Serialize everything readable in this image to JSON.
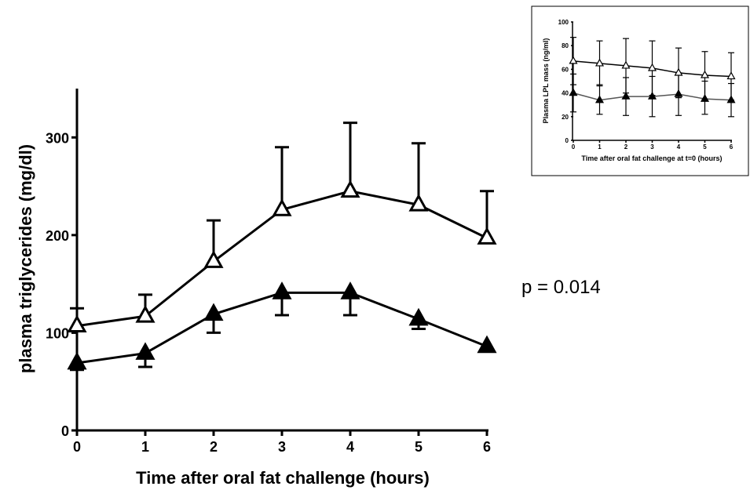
{
  "chart_data": [
    {
      "type": "line",
      "title": "",
      "xlabel": "Time after oral fat challenge (hours)",
      "ylabel": "plasma triglycerides (mg/dl)",
      "xlim": [
        0,
        6
      ],
      "ylim": [
        0,
        350
      ],
      "x_ticks": [
        "0",
        "1",
        "2",
        "3",
        "4",
        "5",
        "6"
      ],
      "y_ticks": [
        "0",
        "100",
        "200",
        "300"
      ],
      "x": [
        0,
        1,
        2,
        3,
        4,
        5,
        6
      ],
      "grid": false,
      "series": [
        {
          "marker": "open-triangle",
          "values": [
            107,
            117,
            173,
            226,
            245,
            231,
            197
          ],
          "error_upper": [
            125,
            139,
            215,
            290,
            315,
            294,
            245
          ]
        },
        {
          "marker": "filled-triangle",
          "values": [
            69,
            79,
            119,
            141,
            141,
            114,
            86
          ],
          "error_lower": [
            62,
            65,
            100,
            118,
            118,
            104,
            86
          ]
        }
      ],
      "annotations": [
        "p = 0.014"
      ]
    },
    {
      "type": "line",
      "title": "",
      "xlabel": "Time after oral fat challenge at t=0 (hours)",
      "ylabel": "Plasma LPL mass (ng/ml)",
      "xlim": [
        0,
        6
      ],
      "ylim": [
        0,
        100
      ],
      "x_ticks": [
        "0",
        "1",
        "2",
        "3",
        "4",
        "5",
        "6"
      ],
      "y_ticks": [
        "0",
        "20",
        "40",
        "60",
        "80",
        "100"
      ],
      "x": [
        0,
        1,
        2,
        3,
        4,
        5,
        6
      ],
      "grid": false,
      "series": [
        {
          "marker": "open-triangle",
          "values": [
            67,
            65,
            63,
            61,
            57,
            55,
            54
          ],
          "error_upper": [
            87,
            84,
            86,
            84,
            78,
            75,
            74
          ],
          "error_lower": [
            47,
            46,
            40,
            38,
            36,
            35,
            34
          ]
        },
        {
          "marker": "filled-triangle",
          "values": [
            40,
            34,
            37,
            37,
            39,
            35,
            34
          ],
          "error_upper": [
            56,
            47,
            53,
            54,
            57,
            50,
            48
          ],
          "error_lower": [
            24,
            22,
            21,
            20,
            21,
            22,
            20
          ]
        }
      ]
    }
  ]
}
